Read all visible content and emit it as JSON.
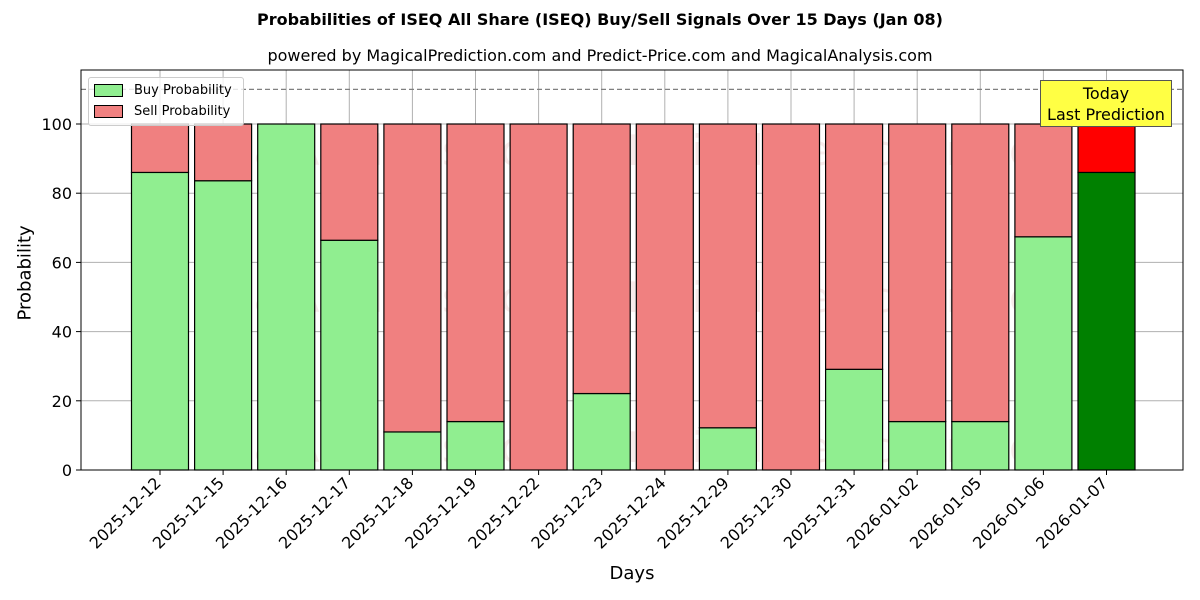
{
  "chart_data": {
    "type": "bar",
    "stacked": true,
    "title": "Probabilities of ISEQ All Share (ISEQ) Buy/Sell Signals Over 15 Days (Jan 08)",
    "subtitle": "powered by MagicalPrediction.com and Predict-Price.com and MagicalAnalysis.com",
    "xlabel": "Days",
    "ylabel": "Probability",
    "ylim": [
      0,
      115
    ],
    "yticks": [
      0,
      20,
      40,
      60,
      80,
      100
    ],
    "grid": true,
    "legend_position": "upper left",
    "reference_line": {
      "y": 110,
      "style": "dashed",
      "color": "#808080"
    },
    "categories": [
      "2025-12-12",
      "2025-12-15",
      "2025-12-16",
      "2025-12-17",
      "2025-12-18",
      "2025-12-19",
      "2025-12-22",
      "2025-12-23",
      "2025-12-24",
      "2025-12-29",
      "2025-12-30",
      "2025-12-31",
      "2026-01-02",
      "2026-01-05",
      "2026-01-06",
      "2026-01-07"
    ],
    "series": [
      {
        "name": "Buy Probability",
        "color": "#90ee90",
        "values": [
          86,
          83.6,
          100,
          66.4,
          11,
          14,
          0,
          22.1,
          0,
          12.2,
          0,
          29.1,
          14,
          14,
          67.4,
          86
        ]
      },
      {
        "name": "Sell Probability",
        "color": "#f08080",
        "values": [
          14,
          16.4,
          0,
          33.6,
          89,
          86,
          100,
          77.9,
          100,
          87.8,
          100,
          70.9,
          86,
          86,
          32.6,
          14
        ]
      }
    ],
    "highlight": {
      "index": 15,
      "buy_color": "#008000",
      "sell_color": "#ff0000",
      "annotation": "Today\nLast Prediction"
    }
  },
  "legend": {
    "buy": "Buy Probability",
    "sell": "Sell Probability"
  },
  "annotation": {
    "line1": "Today",
    "line2": "Last Prediction"
  },
  "watermarks": [
    "MagicalAnalysis.com",
    "MagicalPrediction.com"
  ]
}
